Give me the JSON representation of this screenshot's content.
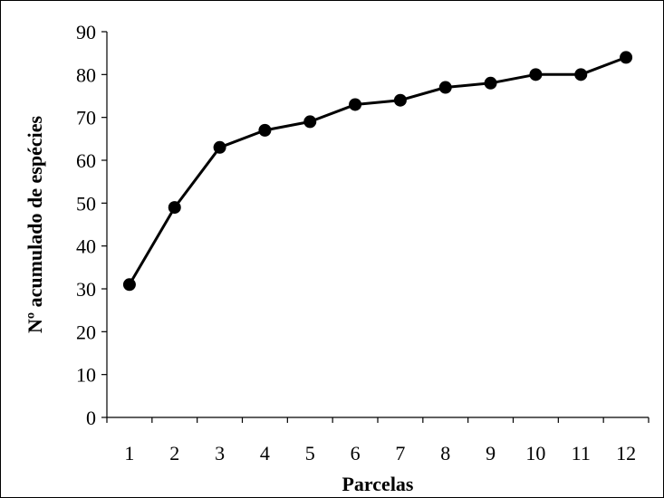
{
  "chart_data": {
    "type": "line",
    "xlabel": "Parcelas",
    "ylabel": "Nº acumulado de espécies",
    "categories": [
      "1",
      "2",
      "3",
      "4",
      "5",
      "6",
      "7",
      "8",
      "9",
      "10",
      "11",
      "12"
    ],
    "series": [
      {
        "values": [
          31,
          49,
          63,
          67,
          69,
          73,
          74,
          77,
          78,
          80,
          80,
          84
        ]
      }
    ],
    "ylim": [
      0,
      90
    ],
    "yticks": [
      0,
      10,
      20,
      30,
      40,
      50,
      60,
      70,
      80,
      90
    ],
    "grid": false,
    "legend": "none",
    "colors": {
      "line": "#000000",
      "marker": "#000000",
      "background": "#ffffff"
    },
    "marker": "filled-circle"
  }
}
